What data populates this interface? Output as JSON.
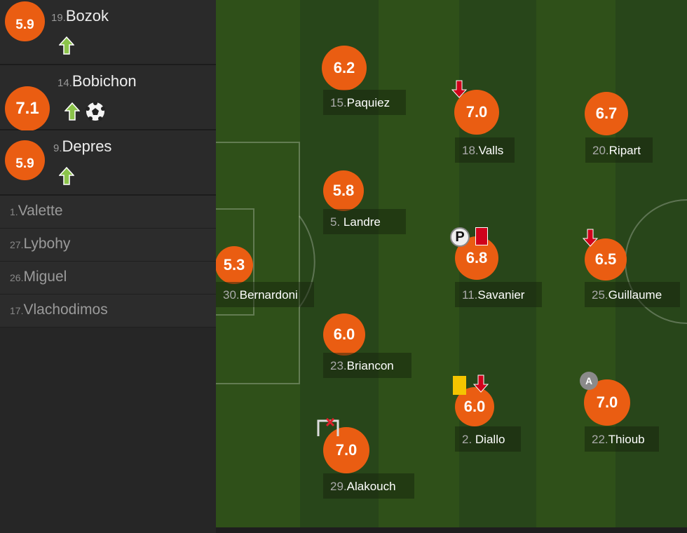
{
  "colors": {
    "rating": "#ea5d12",
    "pitch_light": "#2f5019",
    "pitch_dark": "#28461a",
    "sub_in": "#8bc34a",
    "sub_out": "#d0021b",
    "yellow_card": "#f5c400",
    "red_card": "#d0021b"
  },
  "substitutes": [
    {
      "rating": "5.9",
      "number": "19.",
      "name": "Bozok",
      "icons": [
        "sub-in-arrow"
      ]
    },
    {
      "rating": "7.1",
      "number": "14.",
      "name": "Bobichon",
      "icons": [
        "sub-in-arrow",
        "goal-ball"
      ]
    },
    {
      "rating": "5.9",
      "number": "9.",
      "name": "Depres",
      "icons": [
        "sub-in-arrow"
      ]
    }
  ],
  "bench": [
    {
      "number": "1.",
      "name": "Valette"
    },
    {
      "number": "27.",
      "name": "Lybohy"
    },
    {
      "number": "26.",
      "name": "Miguel"
    },
    {
      "number": "17.",
      "name": "Vlachodimos"
    }
  ],
  "players": [
    {
      "rating": "6.2",
      "number": "15.",
      "name": "Paquiez",
      "icons": []
    },
    {
      "rating": "7.0",
      "number": "18.",
      "name": "Valls",
      "icons": [
        "sub-out-arrow"
      ]
    },
    {
      "rating": "6.7",
      "number": "20.",
      "name": "Ripart",
      "icons": []
    },
    {
      "rating": "5.8",
      "number": "5. ",
      "name": "Landre",
      "icons": []
    },
    {
      "rating": "5.3",
      "number": "30.",
      "name": "Bernardoni",
      "icons": []
    },
    {
      "rating": "6.8",
      "number": "11.",
      "name": "Savanier",
      "icons": [
        "penalty-missed",
        "red-card"
      ]
    },
    {
      "rating": "6.5",
      "number": "25.",
      "name": "Guillaume",
      "icons": [
        "sub-out-arrow"
      ]
    },
    {
      "rating": "6.0",
      "number": "23.",
      "name": "Briancon",
      "icons": []
    },
    {
      "rating": "6.0",
      "number": "2. ",
      "name": "Diallo",
      "icons": [
        "yellow-card",
        "sub-out-arrow"
      ]
    },
    {
      "rating": "7.0",
      "number": "22.",
      "name": "Thioub",
      "icons": [
        "captain"
      ]
    },
    {
      "rating": "7.0",
      "number": "29.",
      "name": "Alakouch",
      "icons": [
        "goal-conceded"
      ]
    }
  ],
  "captain_letter": "A",
  "penalty_letter": "P"
}
